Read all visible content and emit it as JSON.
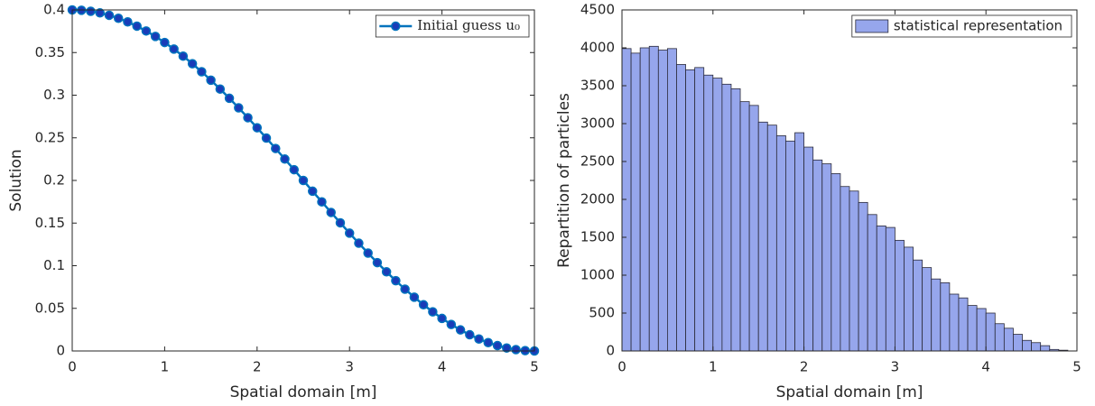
{
  "chart_data": [
    {
      "type": "line",
      "xlabel": "Spatial domain [m]",
      "ylabel": "Solution",
      "x": [
        0,
        0.1,
        0.2,
        0.3,
        0.4,
        0.5,
        0.6,
        0.7,
        0.8,
        0.9,
        1,
        1.1,
        1.2,
        1.3,
        1.4,
        1.5,
        1.6,
        1.7,
        1.8,
        1.9,
        2,
        2.1,
        2.2,
        2.3,
        2.4,
        2.5,
        2.6,
        2.7,
        2.8,
        2.9,
        3,
        3.1,
        3.2,
        3.3,
        3.4,
        3.5,
        3.6,
        3.7,
        3.8,
        3.9,
        4,
        4.1,
        4.2,
        4.3,
        4.4,
        4.5,
        4.6,
        4.7,
        4.8,
        4.9,
        5
      ],
      "series": [
        {
          "name": "Initial guess u₀",
          "color": "#0072bd",
          "marker_color": "#1a3cb8",
          "values": [
            0.4,
            0.3996,
            0.3984,
            0.3965,
            0.3937,
            0.3902,
            0.386,
            0.381,
            0.3753,
            0.3689,
            0.3618,
            0.3541,
            0.3458,
            0.3369,
            0.3275,
            0.3176,
            0.3072,
            0.2964,
            0.2852,
            0.2736,
            0.2618,
            0.2497,
            0.2375,
            0.2251,
            0.2126,
            0.2,
            0.1874,
            0.1749,
            0.1625,
            0.1503,
            0.1382,
            0.1264,
            0.1148,
            0.1036,
            0.0928,
            0.0824,
            0.0725,
            0.0631,
            0.0542,
            0.0459,
            0.0382,
            0.0311,
            0.0247,
            0.019,
            0.014,
            0.0098,
            0.0063,
            0.0035,
            0.0016,
            0.0004,
            0
          ]
        }
      ],
      "xlim": [
        0,
        5
      ],
      "xticks": [
        0,
        1,
        2,
        3,
        4,
        5
      ],
      "ylim": [
        0,
        0.4
      ],
      "yticks": [
        0,
        0.05,
        0.1,
        0.15,
        0.2,
        0.25,
        0.3,
        0.35,
        0.4
      ],
      "legend": "top-right"
    },
    {
      "type": "histogram",
      "xlabel": "Spatial domain [m]",
      "ylabel": "Repartition of particles",
      "bins": [
        0,
        0.1,
        0.2,
        0.3,
        0.4,
        0.5,
        0.6,
        0.7,
        0.8,
        0.9,
        1,
        1.1,
        1.2,
        1.3,
        1.4,
        1.5,
        1.6,
        1.7,
        1.8,
        1.9,
        2,
        2.1,
        2.2,
        2.3,
        2.4,
        2.5,
        2.6,
        2.7,
        2.8,
        2.9,
        3,
        3.1,
        3.2,
        3.3,
        3.4,
        3.5,
        3.6,
        3.7,
        3.8,
        3.9,
        4,
        4.1,
        4.2,
        4.3,
        4.4,
        4.5,
        4.6,
        4.7,
        4.8,
        4.9
      ],
      "series": [
        {
          "name": "statistical representation",
          "color": "#96a6ec",
          "values": [
            3990,
            3930,
            4000,
            4020,
            3970,
            3990,
            3780,
            3710,
            3740,
            3640,
            3600,
            3520,
            3460,
            3290,
            3240,
            3020,
            2980,
            2840,
            2770,
            2880,
            2690,
            2520,
            2470,
            2340,
            2170,
            2110,
            1960,
            1800,
            1650,
            1630,
            1460,
            1370,
            1200,
            1100,
            950,
            900,
            750,
            700,
            600,
            560,
            500,
            360,
            300,
            220,
            140,
            110,
            70,
            20,
            10
          ]
        }
      ],
      "xlim": [
        0,
        5
      ],
      "xticks": [
        0,
        1,
        2,
        3,
        4,
        5
      ],
      "ylim": [
        0,
        4500
      ],
      "yticks": [
        0,
        500,
        1000,
        1500,
        2000,
        2500,
        3000,
        3500,
        4000,
        4500
      ],
      "legend": "top-right"
    }
  ]
}
